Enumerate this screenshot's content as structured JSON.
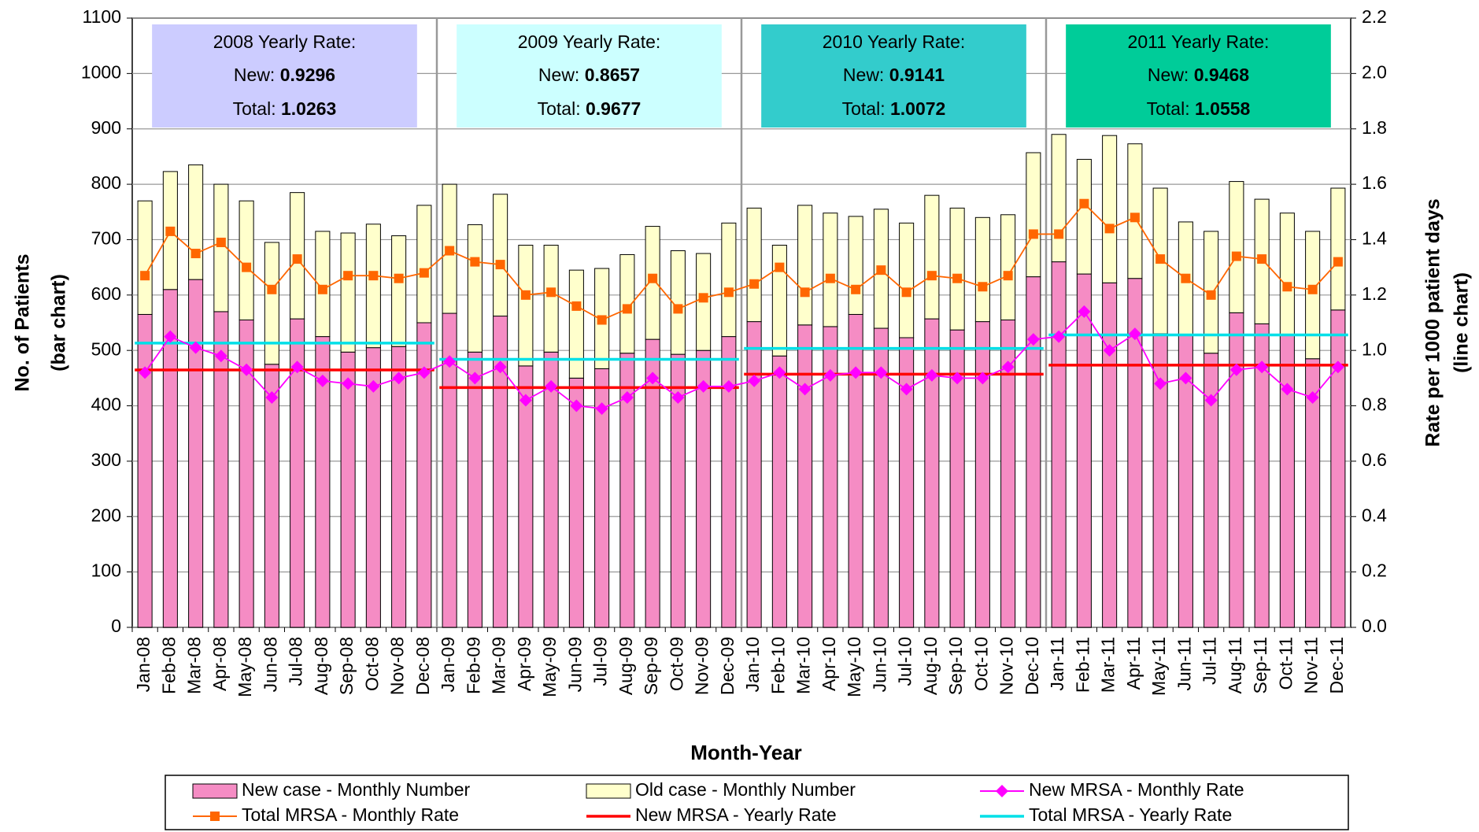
{
  "chart_data": {
    "type": "bar-line",
    "x_label": "Month-Year",
    "y_label": [
      "No. of Patients",
      "(bar chart)"
    ],
    "y2_label": [
      "Rate per 1000 patient days",
      "(line chart)"
    ],
    "categories": [
      "Jan-08",
      "Feb-08",
      "Mar-08",
      "Apr-08",
      "May-08",
      "Jun-08",
      "Jul-08",
      "Aug-08",
      "Sep-08",
      "Oct-08",
      "Nov-08",
      "Dec-08",
      "Jan-09",
      "Feb-09",
      "Mar-09",
      "Apr-09",
      "May-09",
      "Jun-09",
      "Jul-09",
      "Aug-09",
      "Sep-09",
      "Oct-09",
      "Nov-09",
      "Dec-09",
      "Jan-10",
      "Feb-10",
      "Mar-10",
      "Apr-10",
      "May-10",
      "Jun-10",
      "Jul-10",
      "Aug-10",
      "Sep-10",
      "Oct-10",
      "Nov-10",
      "Dec-10",
      "Jan-11",
      "Feb-11",
      "Mar-11",
      "Apr-11",
      "May-11",
      "Jun-11",
      "Jul-11",
      "Aug-11",
      "Sep-11",
      "Oct-11",
      "Nov-11",
      "Dec-11"
    ],
    "ylim": [
      0,
      1100
    ],
    "yticks": [
      0,
      100,
      200,
      300,
      400,
      500,
      600,
      700,
      800,
      900,
      1000,
      1100
    ],
    "y2lim": [
      0,
      2.2
    ],
    "y2ticks": [
      {
        "value": 0,
        "label": "0.0"
      },
      {
        "value": 0.2,
        "label": "0.2"
      },
      {
        "value": 0.4,
        "label": "0.4"
      },
      {
        "value": 0.6,
        "label": "0.6"
      },
      {
        "value": 0.8,
        "label": "0.8"
      },
      {
        "value": 1,
        "label": "1.0"
      },
      {
        "value": 1.2,
        "label": "1.2"
      },
      {
        "value": 1.4,
        "label": "1.4"
      },
      {
        "value": 1.6,
        "label": "1.6"
      },
      {
        "value": 1.8,
        "label": "1.8"
      },
      {
        "value": 2,
        "label": "2.0"
      },
      {
        "value": 2.2,
        "label": "2.2"
      }
    ],
    "grid": true,
    "series": [
      {
        "name": "New case - Monthly Number",
        "color": "#f58cc4",
        "kind": "bar",
        "values": [
          565,
          610,
          628,
          570,
          555,
          475,
          557,
          525,
          497,
          505,
          507,
          550,
          567,
          497,
          562,
          472,
          497,
          450,
          467,
          495,
          520,
          493,
          500,
          525,
          552,
          490,
          546,
          543,
          565,
          540,
          523,
          557,
          537,
          552,
          555,
          633,
          660,
          638,
          622,
          630,
          530,
          527,
          495,
          568,
          548,
          527,
          485,
          573
        ]
      },
      {
        "name": "Old case - Monthly Number",
        "color": "#ffffcc",
        "kind": "bar",
        "values": [
          205,
          213,
          207,
          230,
          215,
          220,
          228,
          190,
          215,
          223,
          200,
          212,
          233,
          230,
          220,
          218,
          193,
          195,
          181,
          178,
          204,
          187,
          175,
          205,
          205,
          200,
          216,
          205,
          177,
          215,
          207,
          223,
          220,
          188,
          190,
          224,
          230,
          207,
          266,
          243,
          263,
          205,
          220,
          237,
          225,
          221,
          230,
          220
        ]
      },
      {
        "name": "New MRSA - Monthly Rate",
        "color": "#ff00ff",
        "kind": "line",
        "marker": "diamond",
        "axis": "y2",
        "values": [
          0.92,
          1.05,
          1.01,
          0.98,
          0.93,
          0.83,
          0.94,
          0.89,
          0.88,
          0.87,
          0.9,
          0.92,
          0.96,
          0.9,
          0.94,
          0.82,
          0.87,
          0.8,
          0.79,
          0.83,
          0.9,
          0.83,
          0.87,
          0.87,
          0.89,
          0.92,
          0.86,
          0.91,
          0.92,
          0.92,
          0.86,
          0.91,
          0.9,
          0.9,
          0.94,
          1.04,
          1.05,
          1.14,
          1.0,
          1.06,
          0.88,
          0.9,
          0.82,
          0.93,
          0.94,
          0.86,
          0.83,
          0.94
        ]
      },
      {
        "name": "Total MRSA - Monthly Rate",
        "color": "#ff6600",
        "kind": "line",
        "marker": "square",
        "axis": "y2",
        "values": [
          1.27,
          1.43,
          1.35,
          1.39,
          1.3,
          1.22,
          1.33,
          1.22,
          1.27,
          1.27,
          1.26,
          1.28,
          1.36,
          1.32,
          1.31,
          1.2,
          1.21,
          1.16,
          1.11,
          1.15,
          1.26,
          1.15,
          1.19,
          1.21,
          1.24,
          1.3,
          1.21,
          1.26,
          1.22,
          1.29,
          1.21,
          1.27,
          1.26,
          1.23,
          1.27,
          1.42,
          1.42,
          1.53,
          1.44,
          1.48,
          1.33,
          1.26,
          1.2,
          1.34,
          1.33,
          1.23,
          1.22,
          1.32
        ]
      }
    ],
    "yearly": {
      "new_label": "New:",
      "total_label": "Total:",
      "new_series": {
        "name": "New MRSA - Yearly Rate",
        "color": "#ff0000"
      },
      "total_series": {
        "name": "Total MRSA - Yearly Rate",
        "color": "#00e0e8"
      },
      "years": [
        {
          "title": "2008 Yearly Rate:",
          "new": 0.9296,
          "total": 1.0263,
          "color": "#ccccff"
        },
        {
          "title": "2009 Yearly Rate:",
          "new": 0.8657,
          "total": 0.9677,
          "color": "#ccffff"
        },
        {
          "title": "2010 Yearly Rate:",
          "new": 0.9141,
          "total": 1.0072,
          "color": "#33cccc"
        },
        {
          "title": "2011 Yearly Rate:",
          "new": 0.9468,
          "total": 1.0558,
          "color": "#00cc99"
        }
      ]
    }
  }
}
